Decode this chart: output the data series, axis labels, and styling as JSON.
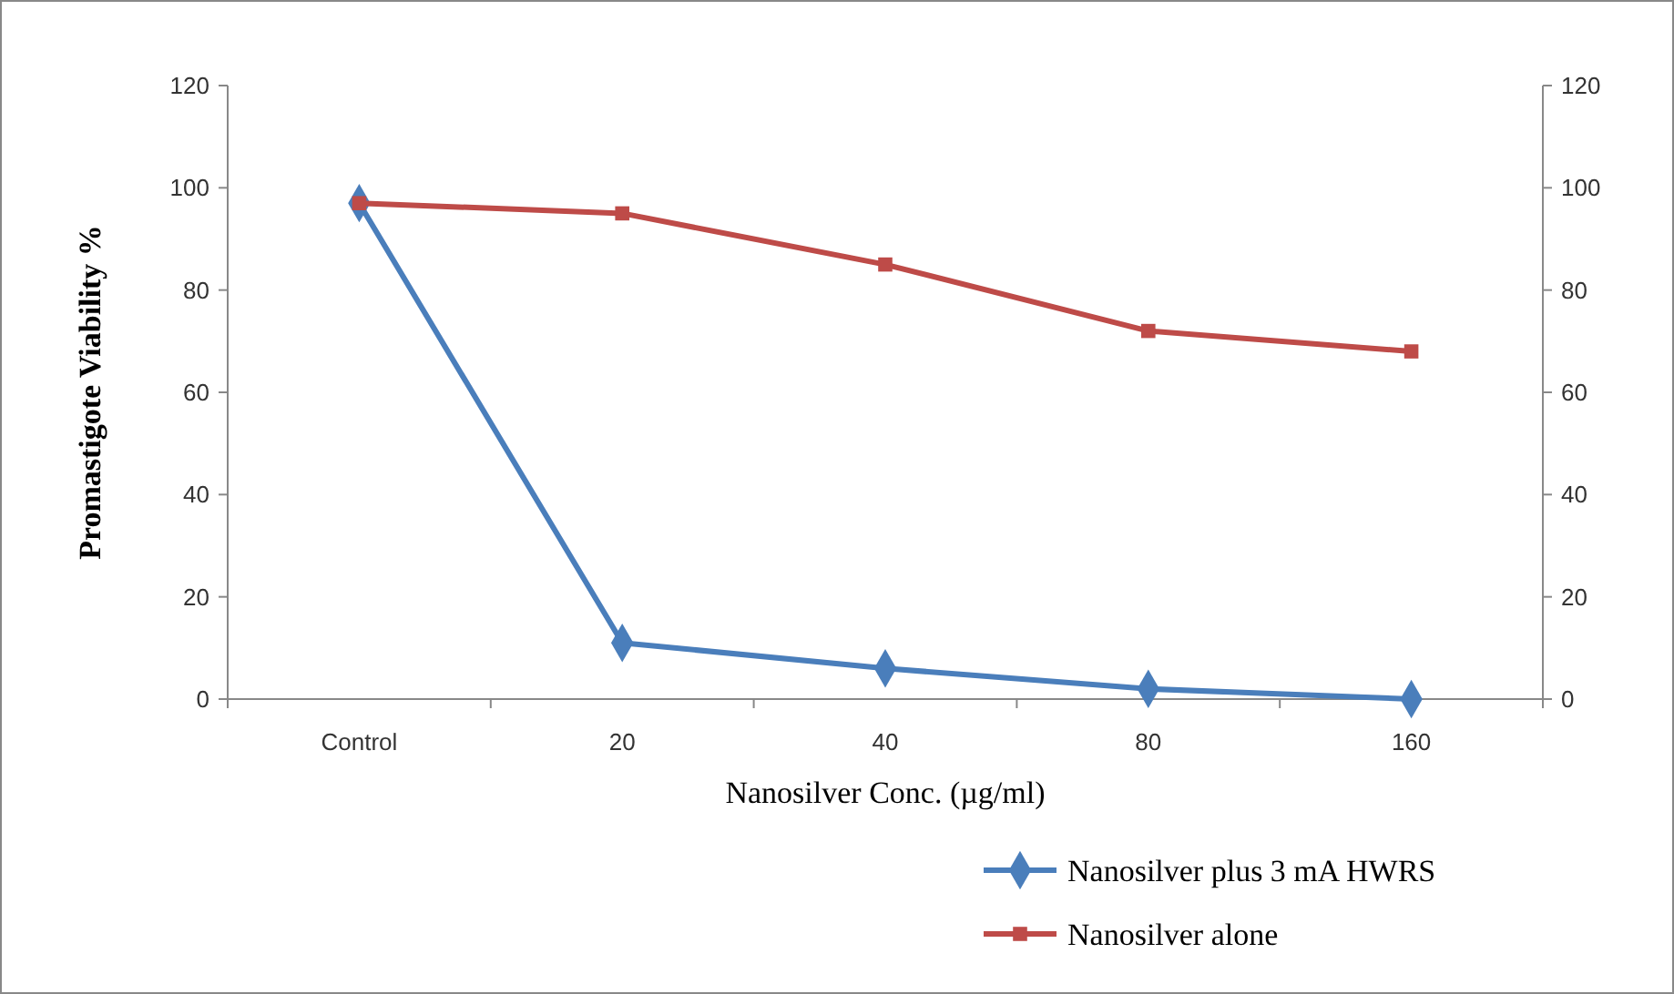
{
  "chart_data": {
    "type": "line",
    "xlabel": "Nanosilver Conc. (µg/ml)",
    "ylabel": "Promastigote Viability %",
    "categories": [
      "Control",
      "20",
      "40",
      "80",
      "160"
    ],
    "series": [
      {
        "name": "Nanosilver plus 3 mA HWRS",
        "color": "#4a7ebb",
        "marker": "diamond",
        "values": [
          97,
          11,
          6,
          2,
          0
        ]
      },
      {
        "name": "Nanosilver alone",
        "color": "#be4b48",
        "marker": "square",
        "values": [
          97,
          95,
          85,
          72,
          68
        ]
      }
    ],
    "ylim": [
      0,
      120
    ],
    "yticks": [
      0,
      20,
      40,
      60,
      80,
      100,
      120
    ],
    "y2lim": [
      0,
      120
    ],
    "y2ticks": [
      0,
      20,
      40,
      60,
      80,
      100,
      120
    ],
    "grid": false,
    "legend": "bottom right",
    "line_style": "solid"
  }
}
